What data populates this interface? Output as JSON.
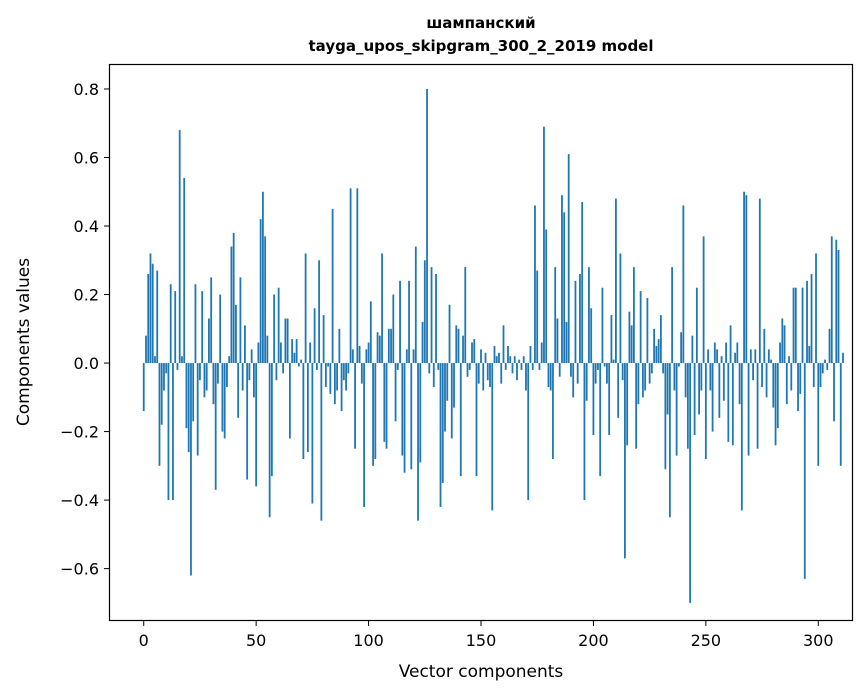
{
  "chart_data": {
    "type": "bar",
    "title": "шампанский",
    "subtitle": "tayga_upos_skipgram_300_2_2019 model",
    "xlabel": "Vector components",
    "ylabel": "Components values",
    "xlim": [
      -15,
      315
    ],
    "ylim": [
      -0.75,
      0.87
    ],
    "xticks": [
      0,
      50,
      100,
      150,
      200,
      250,
      300
    ],
    "xtick_labels": [
      "0",
      "50",
      "100",
      "150",
      "200",
      "250",
      "300"
    ],
    "yticks": [
      -0.6,
      -0.4,
      -0.2,
      0.0,
      0.2,
      0.4,
      0.6,
      0.8
    ],
    "ytick_labels": [
      "−0.6",
      "−0.4",
      "−0.2",
      "0.0",
      "0.2",
      "0.4",
      "0.6",
      "0.8"
    ],
    "grid": false,
    "bar_color": "#1f77b4",
    "values": [
      -0.14,
      0.08,
      0.26,
      0.32,
      0.29,
      0.02,
      0.27,
      -0.3,
      -0.18,
      -0.08,
      -0.03,
      -0.4,
      0.23,
      -0.4,
      0.21,
      -0.02,
      0.68,
      0.02,
      0.54,
      -0.19,
      -0.26,
      -0.62,
      -0.17,
      0.23,
      -0.27,
      -0.05,
      0.21,
      -0.1,
      -0.08,
      0.13,
      0.25,
      -0.12,
      -0.37,
      -0.06,
      0.2,
      -0.2,
      -0.22,
      -0.07,
      0.02,
      0.34,
      0.38,
      0.17,
      -0.16,
      0.25,
      -0.08,
      0.11,
      -0.34,
      -0.05,
      0.04,
      -0.1,
      -0.36,
      0.06,
      0.42,
      0.5,
      0.37,
      0.08,
      -0.45,
      -0.33,
      0.2,
      -0.05,
      0.22,
      0.06,
      -0.03,
      0.13,
      0.13,
      -0.22,
      0.07,
      0.03,
      0.07,
      -0.01,
      0.01,
      -0.28,
      0.32,
      -0.26,
      0.06,
      -0.41,
      0.16,
      -0.02,
      0.3,
      -0.46,
      0.14,
      -0.07,
      -0.01,
      -0.09,
      0.45,
      -0.12,
      -0.08,
      0.1,
      -0.14,
      -0.05,
      -0.08,
      -0.03,
      0.51,
      0.04,
      -0.25,
      0.51,
      0.05,
      -0.06,
      -0.42,
      0.04,
      0.06,
      0.18,
      -0.3,
      -0.28,
      0.09,
      0.08,
      0.32,
      -0.23,
      -0.25,
      0.1,
      0.1,
      0.2,
      -0.17,
      -0.02,
      0.24,
      -0.27,
      -0.32,
      0.04,
      0.24,
      -0.31,
      0.04,
      0.34,
      -0.46,
      -0.29,
      0.12,
      0.3,
      0.8,
      -0.03,
      0.28,
      -0.07,
      0.26,
      -0.02,
      -0.42,
      -0.35,
      -0.2,
      -0.11,
      0.17,
      -0.22,
      -0.13,
      0.11,
      0.1,
      -0.33,
      0.08,
      0.28,
      -0.04,
      -0.02,
      0.06,
      0.07,
      -0.33,
      -0.06,
      0.04,
      -0.08,
      0.03,
      -0.05,
      -0.07,
      -0.43,
      0.05,
      0.02,
      0.03,
      -0.06,
      0.11,
      -0.02,
      0.05,
      0.02,
      -0.03,
      0.02,
      -0.05,
      0.01,
      -0.02,
      0.02,
      -0.08,
      -0.4,
      0.05,
      -0.02,
      0.46,
      0.27,
      -0.02,
      0.06,
      0.69,
      0.39,
      -0.07,
      -0.08,
      -0.28,
      0.28,
      0.13,
      -0.04,
      0.49,
      0.44,
      0.12,
      0.61,
      -0.04,
      -0.1,
      0.24,
      -0.06,
      0.26,
      0.47,
      -0.4,
      -0.11,
      0.28,
      0.16,
      -0.21,
      -0.06,
      -0.02,
      -0.33,
      0.22,
      -0.01,
      -0.06,
      -0.21,
      0.14,
      0.01,
      0.48,
      -0.16,
      0.32,
      -0.05,
      -0.57,
      -0.24,
      0.15,
      0.11,
      0.28,
      -0.25,
      -0.12,
      0.21,
      -0.1,
      -0.08,
      0.19,
      -0.06,
      -0.03,
      0.1,
      0.05,
      0.07,
      0.14,
      -0.03,
      -0.31,
      -0.15,
      -0.45,
      0.28,
      -0.08,
      -0.27,
      -0.01,
      0.09,
      0.46,
      -0.1,
      -0.25,
      -0.7,
      0.08,
      -0.21,
      0.22,
      -0.15,
      -0.08,
      0.37,
      -0.28,
      0.04,
      -0.08,
      -0.2,
      0.06,
      0.04,
      -0.16,
      0.02,
      -0.11,
      0.06,
      -0.23,
      0.11,
      -0.24,
      0.03,
      0.06,
      -0.12,
      -0.43,
      0.5,
      0.49,
      -0.27,
      0.04,
      -0.05,
      0.04,
      -0.25,
      0.48,
      -0.07,
      0.1,
      -0.1,
      0.04,
      0.01,
      -0.13,
      -0.24,
      -0.19,
      0.06,
      0.13,
      0.11,
      -0.12,
      0.02,
      -0.08,
      0.22,
      0.22,
      -0.14,
      -0.09,
      0.22,
      -0.63,
      0.24,
      0.05,
      0.26,
      -0.07,
      0.32,
      -0.3,
      -0.07,
      -0.03,
      0.01,
      -0.02,
      0.1,
      0.37,
      -0.17,
      0.36,
      0.33,
      -0.3,
      0.03
    ]
  }
}
